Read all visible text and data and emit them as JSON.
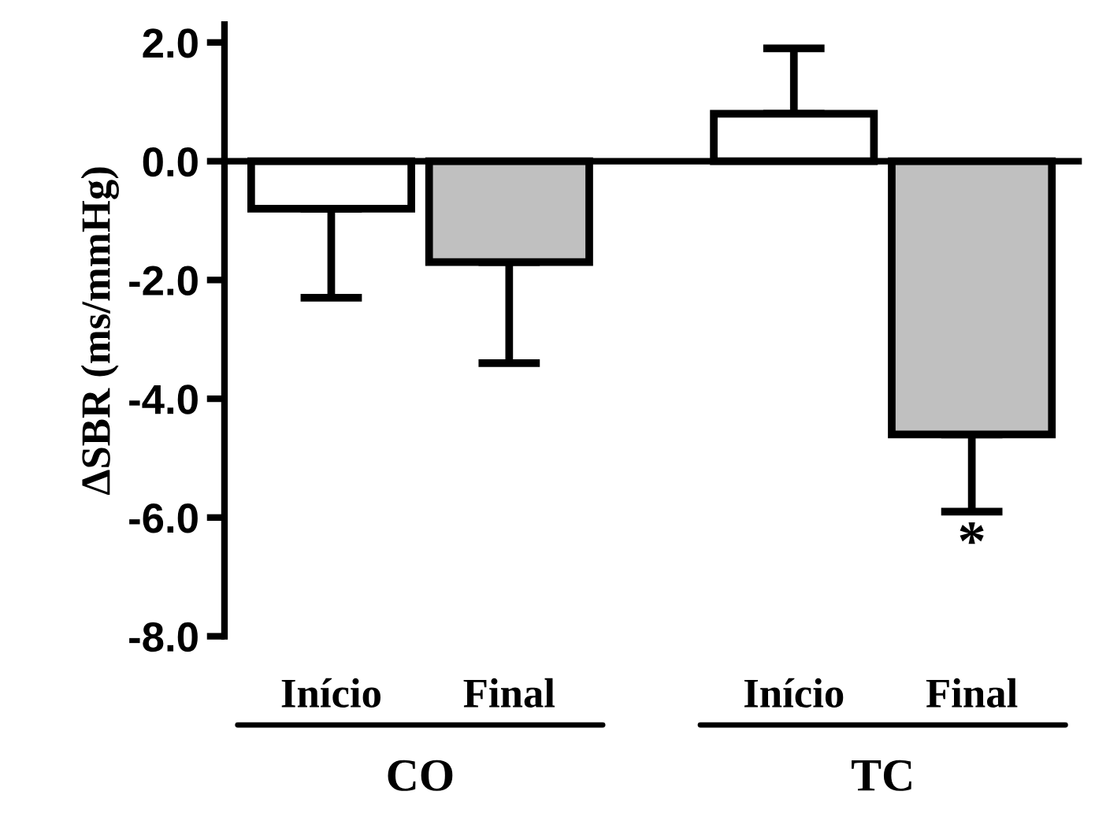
{
  "chart_data": {
    "type": "bar",
    "ylabel": "ΔSBR (ms/mmHg)",
    "categories": [
      "Início",
      "Final",
      "Início",
      "Final"
    ],
    "values": [
      -0.8,
      -1.7,
      0.8,
      -4.6
    ],
    "colors": [
      "#ffffff",
      "#c0c0c0",
      "#ffffff",
      "#c0c0c0"
    ],
    "errors": [
      [
        -2.3,
        -0.8
      ],
      [
        -3.4,
        -1.7
      ],
      [
        0.8,
        1.9
      ],
      [
        -5.9,
        -4.6
      ]
    ],
    "ylim": [
      -8.0,
      2.3
    ],
    "yticks": [
      {
        "value": -8,
        "label": "-8.0"
      },
      {
        "value": -6,
        "label": "-6.0"
      },
      {
        "value": -4,
        "label": "-4.0"
      },
      {
        "value": -2,
        "label": "-2.0"
      },
      {
        "value": 0,
        "label": "0.0"
      },
      {
        "value": 2,
        "label": "2.0"
      }
    ],
    "annotations": [
      "CO",
      "TC",
      "*"
    ],
    "legend": false
  }
}
